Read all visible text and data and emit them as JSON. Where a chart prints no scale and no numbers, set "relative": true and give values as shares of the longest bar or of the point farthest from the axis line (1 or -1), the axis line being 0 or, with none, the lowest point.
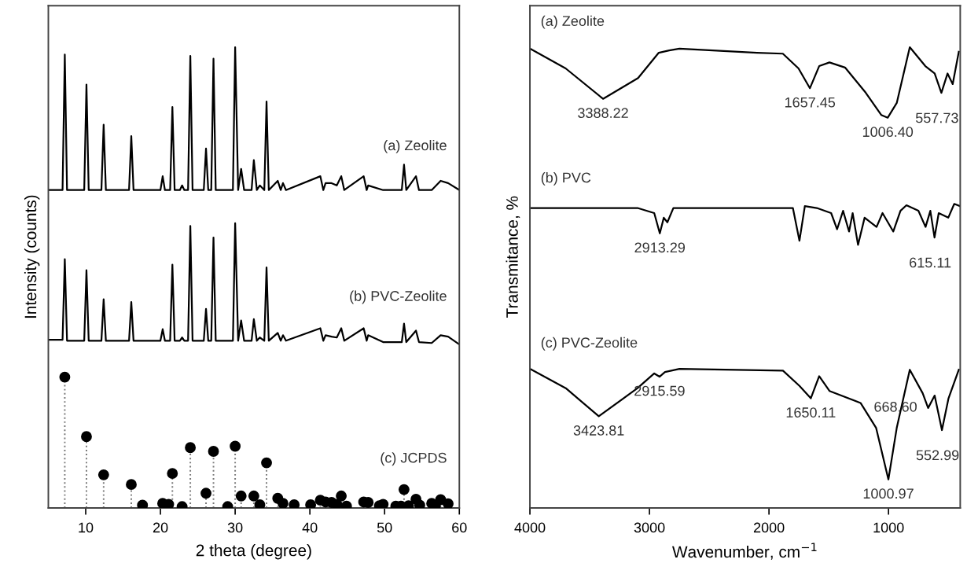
{
  "chart_data": [
    {
      "type": "line",
      "relative": true,
      "xlabel": "2 theta (degree)",
      "ylabel": "Intensity (counts)",
      "xlim": [
        5,
        60
      ],
      "xticks": [
        10,
        20,
        30,
        40,
        50,
        60
      ],
      "tick_labels": "x",
      "line_style": "solid",
      "series": [
        {
          "name": "(a) Zeolite",
          "color": "#000000",
          "type": "line",
          "x": [
            5,
            6.9,
            7.2,
            7.5,
            9.8,
            10.1,
            10.4,
            12.1,
            12.4,
            12.7,
            15.8,
            16.1,
            16.4,
            20.0,
            20.3,
            20.6,
            21.3,
            21.6,
            21.9,
            22.6,
            22.9,
            23.2,
            23.7,
            24.0,
            24.3,
            25.8,
            26.1,
            26.4,
            26.8,
            27.1,
            27.4,
            29.7,
            30.0,
            30.4,
            30.8,
            31.2,
            32.2,
            32.5,
            32.9,
            33.3,
            33.9,
            34.2,
            34.5,
            35.7,
            36.1,
            36.4,
            36.8,
            41.4,
            41.8,
            42.1,
            42.9,
            43.6,
            44.2,
            44.6,
            47.2,
            47.6,
            47.8,
            49.8,
            52.3,
            52.6,
            52.9,
            54.2,
            54.6,
            56.3,
            57.5,
            58.5,
            60
          ],
          "values": [
            0.69,
            0.69,
            0.984,
            0.69,
            0.69,
            0.919,
            0.69,
            0.69,
            0.832,
            0.69,
            0.69,
            0.807,
            0.69,
            0.69,
            0.72,
            0.69,
            0.69,
            0.87,
            0.69,
            0.69,
            0.7,
            0.69,
            0.69,
            0.981,
            0.69,
            0.69,
            0.78,
            0.69,
            0.69,
            0.975,
            0.69,
            0.69,
            1.0,
            0.69,
            0.736,
            0.69,
            0.69,
            0.755,
            0.69,
            0.7,
            0.69,
            0.882,
            0.69,
            0.71,
            0.69,
            0.705,
            0.69,
            0.72,
            0.69,
            0.705,
            0.705,
            0.7,
            0.72,
            0.69,
            0.72,
            0.69,
            0.7,
            0.69,
            0.69,
            0.745,
            0.69,
            0.72,
            0.69,
            0.69,
            0.71,
            0.705,
            0.69
          ]
        },
        {
          "name": "(b) PVC-Zeolite",
          "color": "#000000",
          "type": "line",
          "x": [
            5,
            6.9,
            7.2,
            7.5,
            9.8,
            10.1,
            10.4,
            12.1,
            12.4,
            12.7,
            15.8,
            16.1,
            16.4,
            20.0,
            20.3,
            20.6,
            21.3,
            21.6,
            21.9,
            22.6,
            22.9,
            23.2,
            23.7,
            24.0,
            24.3,
            25.8,
            26.1,
            26.4,
            26.8,
            27.1,
            27.4,
            29.7,
            30.0,
            30.4,
            30.8,
            31.2,
            32.2,
            32.5,
            32.9,
            33.3,
            33.9,
            34.2,
            34.5,
            35.7,
            36.1,
            36.4,
            36.8,
            41.4,
            41.8,
            42.1,
            42.9,
            43.6,
            44.2,
            44.6,
            47.2,
            47.6,
            47.8,
            49.8,
            52.3,
            52.6,
            52.9,
            54.2,
            54.6,
            56.3,
            57.5,
            58.5,
            60
          ],
          "values": [
            0.365,
            0.365,
            0.54,
            0.363,
            0.363,
            0.516,
            0.363,
            0.363,
            0.453,
            0.363,
            0.363,
            0.447,
            0.363,
            0.363,
            0.388,
            0.363,
            0.363,
            0.528,
            0.363,
            0.363,
            0.37,
            0.363,
            0.363,
            0.612,
            0.363,
            0.363,
            0.432,
            0.363,
            0.363,
            0.587,
            0.363,
            0.363,
            0.618,
            0.363,
            0.407,
            0.363,
            0.363,
            0.41,
            0.363,
            0.37,
            0.363,
            0.522,
            0.363,
            0.38,
            0.363,
            0.375,
            0.363,
            0.39,
            0.363,
            0.375,
            0.372,
            0.37,
            0.39,
            0.363,
            0.39,
            0.363,
            0.375,
            0.36,
            0.36,
            0.4,
            0.36,
            0.385,
            0.36,
            0.358,
            0.375,
            0.372,
            0.355
          ]
        },
        {
          "name": "(c) JCPDS",
          "color": "#000000",
          "type": "lollipop",
          "marker": "circle",
          "line_style": "dotted",
          "x": [
            7.2,
            10.1,
            12.4,
            16.1,
            17.6,
            20.3,
            21.1,
            21.6,
            22.9,
            24.0,
            26.1,
            27.1,
            29.0,
            30.0,
            30.8,
            32.5,
            33.3,
            34.2,
            35.7,
            36.4,
            37.9,
            40.1,
            41.4,
            42.1,
            42.9,
            43.6,
            44.2,
            44.9,
            47.2,
            47.8,
            49.3,
            49.8,
            51.5,
            52.2,
            52.6,
            53.2,
            54.2,
            54.7,
            56.3,
            56.8,
            57.5,
            58.5
          ],
          "values": [
            0.284,
            0.155,
            0.072,
            0.051,
            0.006,
            0.01,
            0.008,
            0.075,
            0.003,
            0.131,
            0.032,
            0.123,
            0.003,
            0.134,
            0.026,
            0.026,
            0.007,
            0.098,
            0.021,
            0.01,
            0.007,
            0.007,
            0.017,
            0.013,
            0.012,
            0.008,
            0.026,
            0.004,
            0.013,
            0.012,
            0.005,
            0.008,
            0.004,
            0.004,
            0.04,
            0.005,
            0.019,
            0.006,
            0.01,
            0.005,
            0.018,
            0.009
          ]
        }
      ]
    },
    {
      "type": "line",
      "relative": true,
      "xlabel": "Wavenumber, cm$^{−1}$",
      "ylabel": "Transmitance, %",
      "xlim": [
        4000,
        400
      ],
      "xticks": [
        4000,
        3000,
        2000,
        1000
      ],
      "tick_labels": "x",
      "line_style": "solid",
      "series": [
        {
          "name": "(a) Zeolite",
          "color": "#000000",
          "x": [
            4000,
            3701,
            3388.22,
            3095,
            2922,
            2835,
            2749,
            2100,
            1884,
            1753,
            1657.45,
            1580,
            1494,
            1364,
            1190,
            1061,
            1006.4,
            931,
            822,
            692,
            614,
            557.73,
            506,
            463,
            412
          ],
          "values": [
            0.997,
            0.954,
            0.888,
            0.933,
            0.988,
            0.993,
            0.997,
            0.988,
            0.986,
            0.954,
            0.911,
            0.959,
            0.967,
            0.956,
            0.901,
            0.853,
            0.847,
            0.879,
            1.0,
            0.959,
            0.943,
            0.901,
            0.943,
            0.92,
            0.99
          ]
        },
        {
          "name": "(b) PVC",
          "color": "#000000",
          "x": [
            4000,
            3100,
            2960,
            2913.29,
            2880,
            2850,
            2800,
            1800,
            1745,
            1700,
            1600,
            1480,
            1430,
            1380,
            1330,
            1300,
            1255,
            1200,
            1100,
            1050,
            960,
            900,
            850,
            750,
            690,
            650,
            615.11,
            580,
            500,
            450,
            400
          ],
          "values": [
            0.651,
            0.651,
            0.64,
            0.596,
            0.63,
            0.62,
            0.651,
            0.651,
            0.58,
            0.655,
            0.651,
            0.64,
            0.605,
            0.645,
            0.6,
            0.64,
            0.571,
            0.63,
            0.61,
            0.64,
            0.6,
            0.645,
            0.657,
            0.645,
            0.61,
            0.645,
            0.587,
            0.64,
            0.63,
            0.66,
            0.655
          ]
        },
        {
          "name": "(c) PVC-Zeolite",
          "color": "#000000",
          "x": [
            4000,
            3700,
            3423.81,
            3100,
            2960,
            2915.59,
            2870,
            2749,
            1883,
            1745,
            1650.11,
            1580,
            1494,
            1234,
            1104,
            1000.97,
            931,
            822,
            714,
            668.6,
            614,
            552.99,
            498,
            412
          ],
          "values": [
            0.302,
            0.26,
            0.199,
            0.26,
            0.292,
            0.285,
            0.295,
            0.302,
            0.298,
            0.265,
            0.238,
            0.286,
            0.254,
            0.228,
            0.174,
            0.062,
            0.174,
            0.3,
            0.249,
            0.217,
            0.244,
            0.169,
            0.238,
            0.3
          ]
        }
      ],
      "annotations": [
        {
          "text": "3388.22",
          "x": 3388.22,
          "y": 0.888
        },
        {
          "text": "1657.45",
          "x": 1657.45,
          "y": 0.911
        },
        {
          "text": "1006.40",
          "x": 1006.4,
          "y": 0.847
        },
        {
          "text": "557.73",
          "x": 557.73,
          "y": 0.901
        },
        {
          "text": "2913.29",
          "x": 2913.29,
          "y": 0.596
        },
        {
          "text": "615.11",
          "x": 615.11,
          "y": 0.587
        },
        {
          "text": "3423.81",
          "x": 3423.81,
          "y": 0.199
        },
        {
          "text": "2915.59",
          "x": 2915.59,
          "y": 0.285
        },
        {
          "text": "1650.11",
          "x": 1650.11,
          "y": 0.238
        },
        {
          "text": "1000.97",
          "x": 1000.97,
          "y": 0.062
        },
        {
          "text": "668.60",
          "x": 668.6,
          "y": 0.217
        },
        {
          "text": "552.99",
          "x": 552.99,
          "y": 0.169
        }
      ]
    }
  ]
}
